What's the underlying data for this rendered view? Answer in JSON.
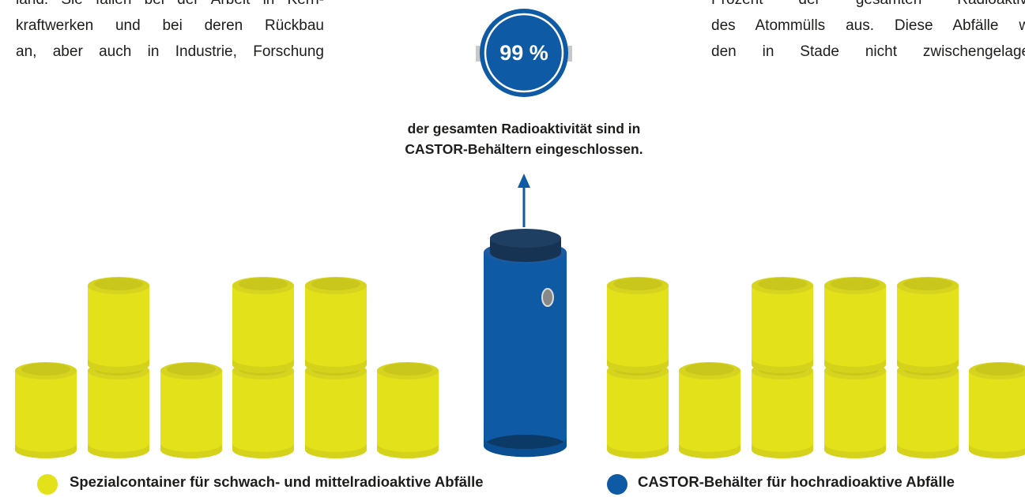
{
  "left_text": [
    "land. Sie fallen bei der Arbeit in Kern-",
    "kraftwerken und bei deren Rückbau",
    "an, aber auch in Industrie, Forschung"
  ],
  "right_text": [
    "Prozent der gesamten Radioaktivitä",
    "des Atommülls aus. Diese Abfälle wer",
    "den in Stade nicht zwischengelagert."
  ],
  "badge": "99 %",
  "caption": [
    "der gesamten Radioaktivität sind in",
    "CASTOR-Behältern eingeschlossen."
  ],
  "legend": [
    "Spezialcontainer für schwach- und mittelradioaktive Abfälle",
    "CASTOR-Behälter für hochradioaktive Abfälle"
  ]
}
